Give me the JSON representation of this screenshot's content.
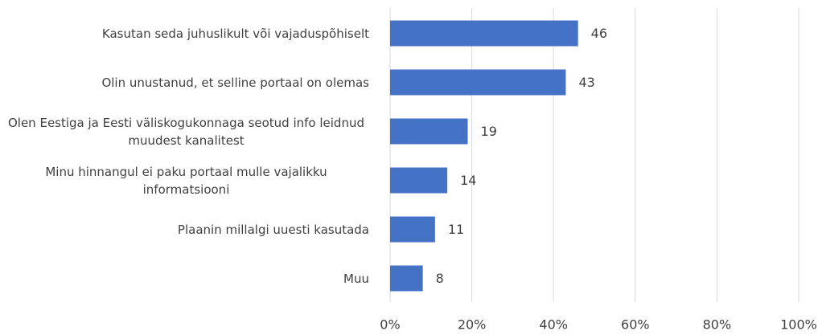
{
  "chart_data": {
    "type": "bar",
    "orientation": "horizontal",
    "categories": [
      "Kasutan seda juhuslikult või vajaduspõhiselt",
      "Olin unustanud, et selline portaal on olemas",
      "Olen Eestiga ja Eesti väliskogukonnaga seotud info leidnud muudest kanalitest",
      "Minu hinnangul ei paku portaal mulle vajalikku informatsiooni",
      "Plaanin millalgi uuesti kasutada",
      "Muu"
    ],
    "values": [
      46,
      43,
      19,
      14,
      11,
      8
    ],
    "color": "#4472c4",
    "xlim": [
      0,
      100
    ],
    "xticks": [
      {
        "value": 0,
        "label": "0%"
      },
      {
        "value": 20,
        "label": "20%"
      },
      {
        "value": 40,
        "label": "40%"
      },
      {
        "value": 60,
        "label": "60%"
      },
      {
        "value": 80,
        "label": "80%"
      },
      {
        "value": 100,
        "label": "100%"
      }
    ],
    "grid": true
  }
}
